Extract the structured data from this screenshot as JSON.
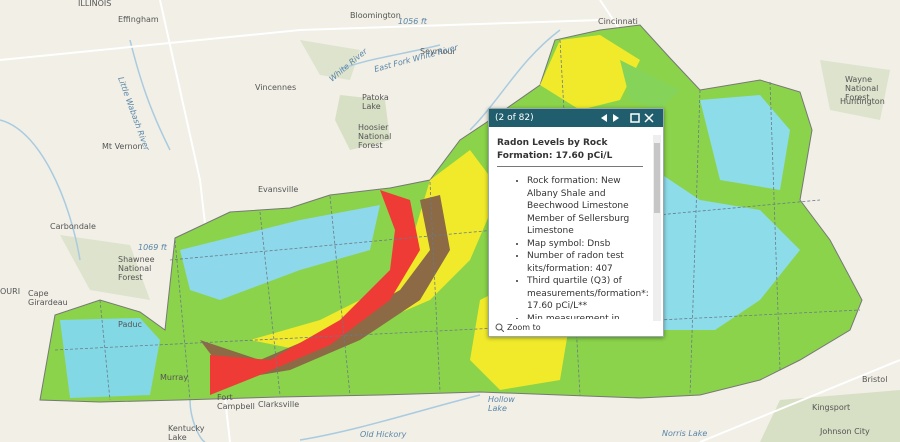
{
  "map_labels": [
    {
      "lines": [
        "ILLINOIS"
      ]
    },
    {
      "lines": [
        "Effingham"
      ]
    },
    {
      "lines": [
        "Bloomington"
      ]
    },
    {
      "lines": [
        "1056 ft"
      ]
    },
    {
      "lines": [
        "Cincinnati"
      ]
    },
    {
      "lines": [
        "Seymour"
      ]
    },
    {
      "lines": [
        "White River"
      ]
    },
    {
      "lines": [
        "East Fork White River"
      ]
    },
    {
      "lines": [
        "Little Wabash River"
      ]
    },
    {
      "lines": [
        "Vincennes"
      ]
    },
    {
      "lines": [
        "Patoka",
        "Lake"
      ]
    },
    {
      "lines": [
        "Hoosier",
        "National",
        "Forest"
      ]
    },
    {
      "lines": [
        "Mt Vernon"
      ]
    },
    {
      "lines": [
        "Evansville"
      ]
    },
    {
      "lines": [
        "Carbondale"
      ]
    },
    {
      "lines": [
        "1069 ft"
      ]
    },
    {
      "lines": [
        "Shawnee",
        "National",
        "Forest"
      ]
    },
    {
      "lines": [
        "Cape",
        "Girardeau"
      ]
    },
    {
      "lines": [
        "OURI"
      ]
    },
    {
      "lines": [
        "Paduc"
      ]
    },
    {
      "lines": [
        "Murray"
      ]
    },
    {
      "lines": [
        "Fort",
        "Campbell"
      ]
    },
    {
      "lines": [
        "Clarksville"
      ]
    },
    {
      "lines": [
        "Kentucky",
        "Lake"
      ]
    },
    {
      "lines": [
        "Old Hickory"
      ]
    },
    {
      "lines": [
        "Hollow",
        "Lake"
      ]
    },
    {
      "lines": [
        "Norris Lake"
      ]
    },
    {
      "lines": [
        "Bristol"
      ]
    },
    {
      "lines": [
        "Kingsport"
      ]
    },
    {
      "lines": [
        "Johnson City"
      ]
    },
    {
      "lines": [
        "Huntington"
      ]
    },
    {
      "lines": [
        "Wayne",
        "National",
        "Forest"
      ]
    }
  ],
  "popup": {
    "header": "(2 of 82)",
    "title": "Radon Levels by Rock Formation: 17.60 pCi/L",
    "items": [
      "Rock formation: New Albany Shale and Beechwood Limestone Member of Sellersburg Limestone",
      "Map symbol: Dnsb",
      "Number of radon test kits/formation: 407",
      "Third quartile (Q3) of measurements/formation*: 17.60 pCi/L**",
      "Min measurement in"
    ],
    "footer": "Zoom to"
  }
}
